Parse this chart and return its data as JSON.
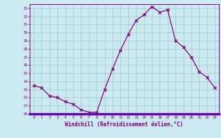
{
  "x": [
    0,
    1,
    2,
    3,
    4,
    5,
    6,
    7,
    8,
    9,
    10,
    11,
    12,
    13,
    14,
    15,
    16,
    17,
    18,
    19,
    20,
    21,
    22,
    23
  ],
  "y": [
    23.5,
    23.2,
    22.2,
    22.0,
    21.5,
    21.2,
    20.5,
    20.2,
    20.2,
    23.0,
    25.5,
    27.8,
    29.8,
    31.5,
    32.2,
    33.2,
    32.5,
    32.8,
    29.0,
    28.2,
    27.0,
    25.2,
    24.5,
    23.2
  ],
  "xlabel": "Windchill (Refroidissement éolien,°C)",
  "ylabel": "",
  "ylim": [
    20,
    33.5
  ],
  "xlim": [
    -0.5,
    23.5
  ],
  "yticks": [
    20,
    21,
    22,
    23,
    24,
    25,
    26,
    27,
    28,
    29,
    30,
    31,
    32,
    33
  ],
  "xticks": [
    0,
    1,
    2,
    3,
    4,
    5,
    6,
    7,
    8,
    9,
    10,
    11,
    12,
    13,
    14,
    15,
    16,
    17,
    18,
    19,
    20,
    21,
    22,
    23
  ],
  "line_color": "#800080",
  "bg_color": "#cce8f0",
  "grid_color": "#99ccbb",
  "axis_bg": "#cce8f0",
  "bottom_bar_color": "#6600aa"
}
